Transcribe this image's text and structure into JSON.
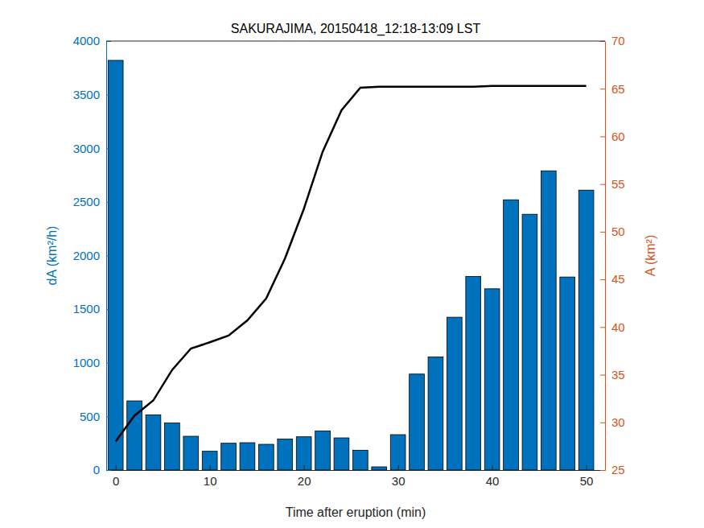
{
  "chart_data": {
    "type": "bar",
    "title": "SAKURAJIMA, 20150418_12:18-13:09 LST",
    "x_label": "Time after eruption (min)",
    "y_label": "dA (km²/h)",
    "y2_label": "A (km²)",
    "x": [
      0,
      2,
      4,
      6,
      8,
      10,
      12,
      14,
      16,
      18,
      20,
      22,
      24,
      26,
      28,
      30,
      32,
      34,
      36,
      38,
      40,
      42,
      44,
      46,
      48,
      50
    ],
    "series": [
      {
        "type": "bar",
        "color": "#0072BD",
        "values": [
          3820,
          645,
          515,
          440,
          315,
          175,
          250,
          255,
          240,
          290,
          310,
          365,
          300,
          185,
          30,
          330,
          895,
          1055,
          1425,
          1805,
          1690,
          2520,
          2385,
          2790,
          1800,
          2610
        ]
      },
      {
        "type": "line",
        "axis": "y2",
        "color": "#000000",
        "line_style": "solid",
        "values": [
          28.0,
          30.7,
          32.3,
          35.5,
          37.75,
          38.4,
          39.1,
          40.7,
          43.0,
          47.2,
          52.4,
          58.4,
          62.75,
          65.1,
          65.2,
          65.2,
          65.2,
          65.2,
          65.2,
          65.2,
          65.3,
          65.3,
          65.3,
          65.3,
          65.3,
          65.3
        ]
      }
    ],
    "xlim": [
      -1,
      52
    ],
    "xticks": [
      0,
      10,
      20,
      30,
      40,
      50
    ],
    "ylim": [
      0,
      4000
    ],
    "yticks": [
      0,
      500,
      1000,
      1500,
      2000,
      2500,
      3000,
      3500,
      4000
    ],
    "y2lim": [
      25,
      70
    ],
    "y2ticks": [
      25,
      30,
      35,
      40,
      45,
      50,
      55,
      60,
      65,
      70
    ],
    "grid": false
  }
}
